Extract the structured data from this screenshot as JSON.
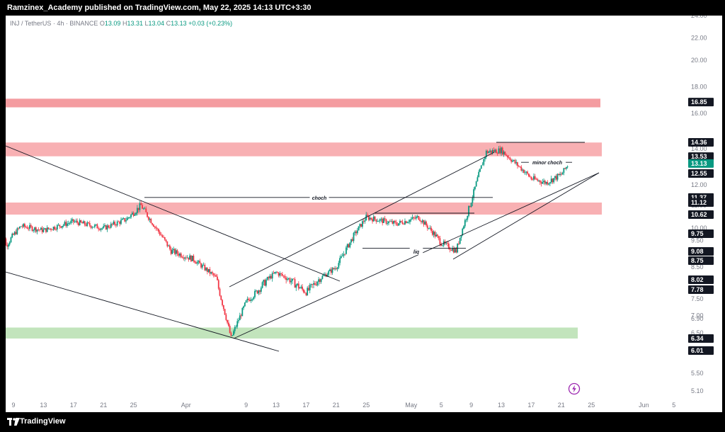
{
  "header": {
    "publisher_line": "Ramzinex_Academy published on TradingView.com, May 22, 2025 14:13 UTC+3:30"
  },
  "legend": {
    "symbol": "INJ / TetherUS · 4h · BINANCE",
    "open_label": "O",
    "open": "13.09",
    "high_label": "H",
    "high": "13.31",
    "low_label": "L",
    "low": "13.04",
    "close_label": "C",
    "close": "13.13",
    "change": "+0.03 (+0.23%)"
  },
  "footer": {
    "brand": "TradingView"
  },
  "colors": {
    "up": "#089981",
    "down": "#f23645",
    "wick": "#131722",
    "resistance_zone": "#f7a2a6",
    "support_zone": "#b7dfb0",
    "top_zone": "#f28b8f",
    "badge": "#131722",
    "last_price_badge": "#089981"
  },
  "chart_data": {
    "type": "candlestick",
    "symbol": "INJ/USDT",
    "timeframe": "4h",
    "exchange": "BINANCE",
    "x_tick_labels": [
      "9",
      "13",
      "17",
      "21",
      "25",
      "Apr",
      "9",
      "13",
      "17",
      "21",
      "25",
      "May",
      "5",
      "9",
      "13",
      "17",
      "21",
      "25",
      "Jun",
      "5"
    ],
    "y_tick_labels": [
      "24.00",
      "22.00",
      "20.00",
      "18.00",
      "16.00",
      "14.00",
      "12.00",
      "11.00",
      "10.00",
      "9.50",
      "9.00",
      "8.50",
      "8.00",
      "7.50",
      "7.00",
      "6.90",
      "6.50",
      "6.00",
      "5.50",
      "5.10"
    ],
    "price_badges": [
      "16.85",
      "14.36",
      "13.53",
      "13.13",
      "12.55",
      "11.37",
      "11.12",
      "10.62",
      "9.75",
      "9.08",
      "8.75",
      "8.02",
      "7.78",
      "6.34",
      "6.01"
    ],
    "last_price": "13.13",
    "zones": [
      {
        "type": "resistance",
        "from": 16.45,
        "to": 17.1
      },
      {
        "type": "resistance",
        "from": 13.55,
        "to": 14.35
      },
      {
        "type": "resistance",
        "from": 10.62,
        "to": 11.12
      },
      {
        "type": "support",
        "from": 6.34,
        "to": 6.65
      }
    ],
    "annotations": [
      {
        "text": "choch",
        "price": 11.37
      },
      {
        "text": "minor choch",
        "price": 13.2
      },
      {
        "text": "liq",
        "price": 9.08
      }
    ],
    "series": [
      {
        "name": "price path",
        "points": [
          [
            "Mar 7",
            11.2
          ],
          [
            "Mar 8",
            9.3
          ],
          [
            "Mar 10",
            10.1
          ],
          [
            "Mar 13",
            9.9
          ],
          [
            "Mar 17",
            10.3
          ],
          [
            "Mar 21",
            10.0
          ],
          [
            "Mar 24",
            10.4
          ],
          [
            "Mar 26",
            11.0
          ],
          [
            "Mar 28",
            10.0
          ],
          [
            "Mar 30",
            9.1
          ],
          [
            "Apr 2",
            8.8
          ],
          [
            "Apr 5",
            8.1
          ],
          [
            "Apr 7",
            6.35
          ],
          [
            "Apr 9",
            7.4
          ],
          [
            "Apr 13",
            8.3
          ],
          [
            "Apr 17",
            7.7
          ],
          [
            "Apr 21",
            8.5
          ],
          [
            "Apr 25",
            10.5
          ],
          [
            "Apr 29",
            10.2
          ],
          [
            "May 2",
            10.5
          ],
          [
            "May 5",
            9.4
          ],
          [
            "May 7",
            9.1
          ],
          [
            "May 9",
            11.2
          ],
          [
            "May 11",
            13.8
          ],
          [
            "May 13",
            13.9
          ],
          [
            "May 17",
            12.3
          ],
          [
            "May 19",
            12.1
          ],
          [
            "May 21",
            12.5
          ],
          [
            "May 22",
            13.13
          ]
        ]
      }
    ]
  }
}
